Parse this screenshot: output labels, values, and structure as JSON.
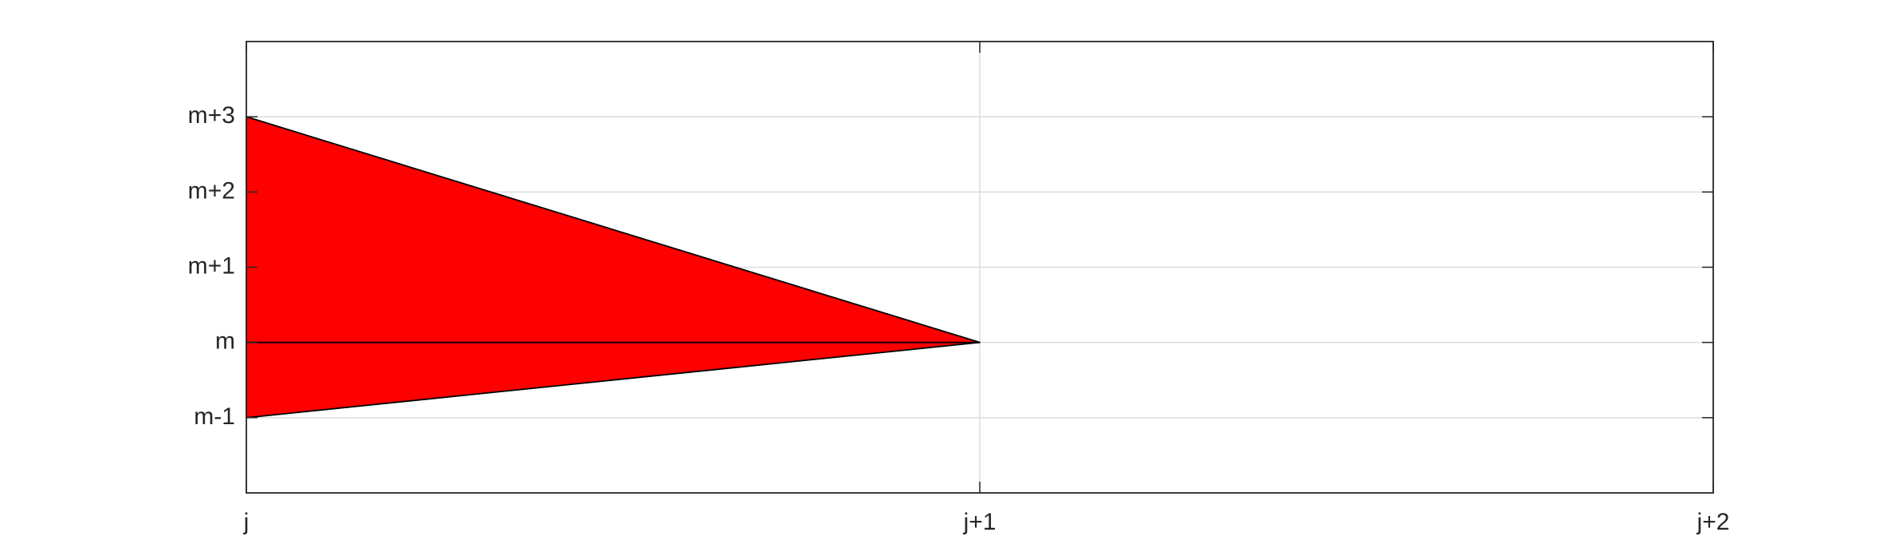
{
  "chart_data": {
    "type": "area",
    "x_ticks": [
      {
        "value": 0,
        "label": "j"
      },
      {
        "value": 1,
        "label": "j+1"
      },
      {
        "value": 2,
        "label": "j+2"
      }
    ],
    "y_ticks": [
      {
        "value": -1,
        "label": "m-1"
      },
      {
        "value": 0,
        "label": "m"
      },
      {
        "value": 1,
        "label": "m+1"
      },
      {
        "value": 2,
        "label": "m+2"
      },
      {
        "value": 3,
        "label": "m+3"
      }
    ],
    "xlim": [
      0,
      2
    ],
    "ylim": [
      -2,
      4
    ],
    "grid": true,
    "shapes": [
      {
        "name": "",
        "fill": "#ff0000",
        "points": [
          [
            0,
            3
          ],
          [
            1,
            0
          ],
          [
            0,
            -1
          ]
        ]
      }
    ],
    "lines": [
      {
        "points": [
          [
            0,
            0
          ],
          [
            1,
            0
          ]
        ]
      }
    ]
  },
  "colors": {
    "triangle_fill": "#ff0000",
    "edge": "#000000",
    "axes": "#262626",
    "grid": "#dcdcdc"
  }
}
